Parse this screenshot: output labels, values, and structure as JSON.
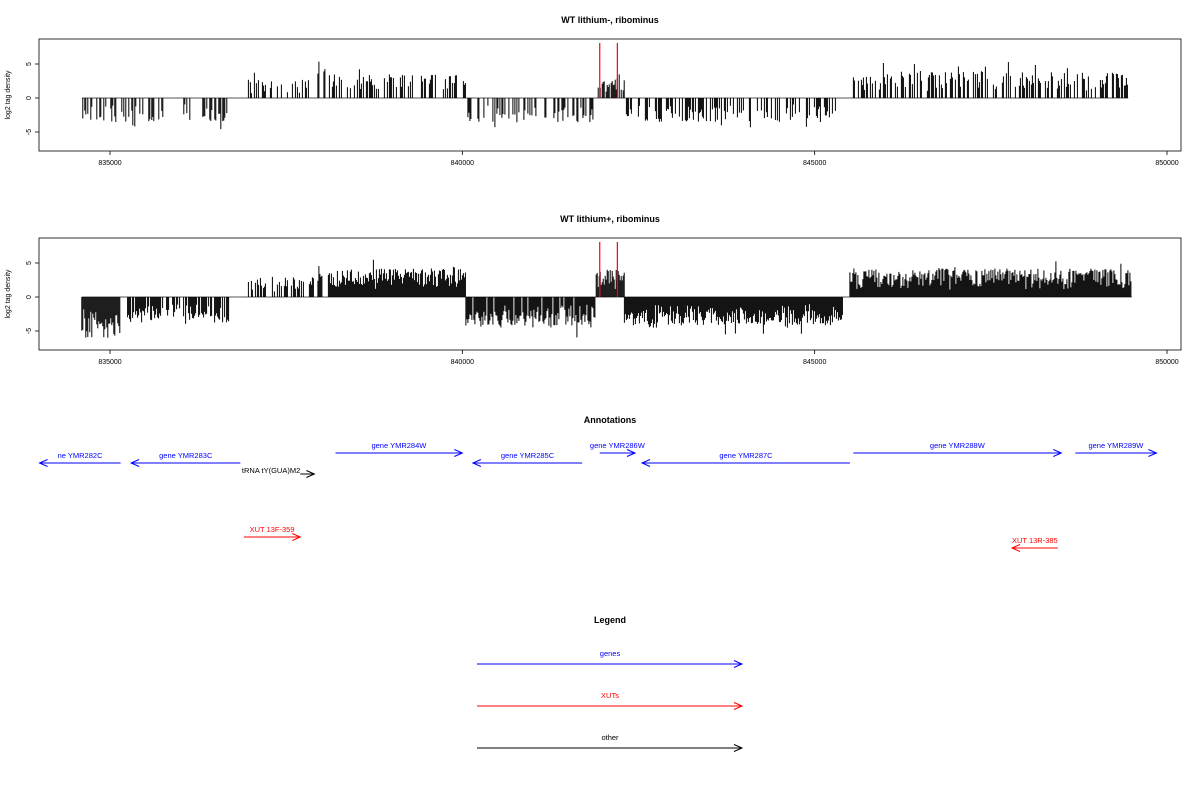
{
  "chart_data": [
    {
      "type": "bar",
      "title": "WT lithium-, ribominus",
      "ylabel": "log2 tag density",
      "xlim": [
        834000,
        850200
      ],
      "ylim": [
        -8,
        8.5
      ],
      "x_ticks": [
        "835000",
        "840000",
        "845000",
        "850000"
      ],
      "y_ticks": [
        "-5",
        "0",
        "5"
      ],
      "highlight_positions": [
        841950,
        842200
      ],
      "highlight_color": "#ff0000",
      "segments": [
        {
          "start": 834600,
          "end": 836700,
          "sign": -1,
          "density": 0.35,
          "amp": 3.5
        },
        {
          "start": 836950,
          "end": 837900,
          "sign": 1,
          "density": 0.3,
          "amp": 2.8
        },
        {
          "start": 837950,
          "end": 838050,
          "sign": 1,
          "density": 0.6,
          "amp": 5.5
        },
        {
          "start": 838100,
          "end": 840050,
          "sign": 1,
          "density": 0.4,
          "amp": 3.5
        },
        {
          "start": 840050,
          "end": 841900,
          "sign": -1,
          "density": 0.4,
          "amp": 3.6
        },
        {
          "start": 841900,
          "end": 842300,
          "sign": 1,
          "density": 0.8,
          "amp": 3.5
        },
        {
          "start": 842300,
          "end": 845350,
          "sign": -1,
          "density": 0.4,
          "amp": 3.6
        },
        {
          "start": 845550,
          "end": 849450,
          "sign": 1,
          "density": 0.5,
          "amp": 4.0
        }
      ]
    },
    {
      "type": "bar",
      "title": "WT lithium+, ribominus",
      "ylabel": "log2 tag density",
      "xlim": [
        834000,
        850200
      ],
      "ylim": [
        -8,
        8.5
      ],
      "x_ticks": [
        "835000",
        "840000",
        "845000",
        "850000"
      ],
      "y_ticks": [
        "-5",
        "0",
        "5"
      ],
      "highlight_positions": [
        841950,
        842200
      ],
      "highlight_color": "#ff0000",
      "segments": [
        {
          "start": 834600,
          "end": 835150,
          "sign": -1,
          "density": 1.0,
          "amp": 6.0
        },
        {
          "start": 835250,
          "end": 836700,
          "sign": -1,
          "density": 0.6,
          "amp": 3.8
        },
        {
          "start": 836950,
          "end": 837900,
          "sign": 1,
          "density": 0.4,
          "amp": 3.0
        },
        {
          "start": 837950,
          "end": 838050,
          "sign": 1,
          "density": 0.6,
          "amp": 6.5
        },
        {
          "start": 838100,
          "end": 840050,
          "sign": 1,
          "density": 1.0,
          "amp": 4.2
        },
        {
          "start": 840050,
          "end": 841900,
          "sign": -1,
          "density": 0.9,
          "amp": 4.5
        },
        {
          "start": 841900,
          "end": 842300,
          "sign": 1,
          "density": 1.0,
          "amp": 4.0
        },
        {
          "start": 842300,
          "end": 845400,
          "sign": -1,
          "density": 1.0,
          "amp": 4.2
        },
        {
          "start": 845500,
          "end": 849500,
          "sign": 1,
          "density": 1.0,
          "amp": 4.2
        }
      ]
    }
  ],
  "annotations": {
    "title": "Annotations",
    "items": [
      {
        "label": "ne YMR282C",
        "start": 834000,
        "end": 835150,
        "strand": "-",
        "color": "#0000ff",
        "row": 1
      },
      {
        "label": "gene YMR283C",
        "start": 835300,
        "end": 836850,
        "strand": "-",
        "color": "#0000ff",
        "row": 1
      },
      {
        "label": "gene YMR284W",
        "start": 838200,
        "end": 840000,
        "strand": "+",
        "color": "#0000ff",
        "row": 0
      },
      {
        "label": "tRNA tY(GUA)M2",
        "start": 837700,
        "end": 837900,
        "strand": "+",
        "color": "#000000",
        "row": 2
      },
      {
        "label": "gene YMR285C",
        "start": 840150,
        "end": 841700,
        "strand": "-",
        "color": "#0000ff",
        "row": 1
      },
      {
        "label": "gene YMR286W",
        "start": 841950,
        "end": 842450,
        "strand": "+",
        "color": "#0000ff",
        "row": 0
      },
      {
        "label": "gene YMR287C",
        "start": 842550,
        "end": 845500,
        "strand": "-",
        "color": "#0000ff",
        "row": 1
      },
      {
        "label": "gene YMR288W",
        "start": 845550,
        "end": 848500,
        "strand": "+",
        "color": "#0000ff",
        "row": 0
      },
      {
        "label": "gene YMR289W",
        "start": 848700,
        "end": 849850,
        "strand": "+",
        "color": "#0000ff",
        "row": 0
      },
      {
        "label": "XUT 13F-359",
        "start": 836900,
        "end": 837700,
        "strand": "+",
        "color": "#ff0000",
        "row": 3
      },
      {
        "label": "XUT 13R-385",
        "start": 847800,
        "end": 848450,
        "strand": "-",
        "color": "#ff0000",
        "row": 4
      }
    ]
  },
  "legend": {
    "title": "Legend",
    "items": [
      {
        "label": "genes",
        "color": "#0000ff"
      },
      {
        "label": "XUTs",
        "color": "#ff0000"
      },
      {
        "label": "other",
        "color": "#000000"
      }
    ]
  }
}
